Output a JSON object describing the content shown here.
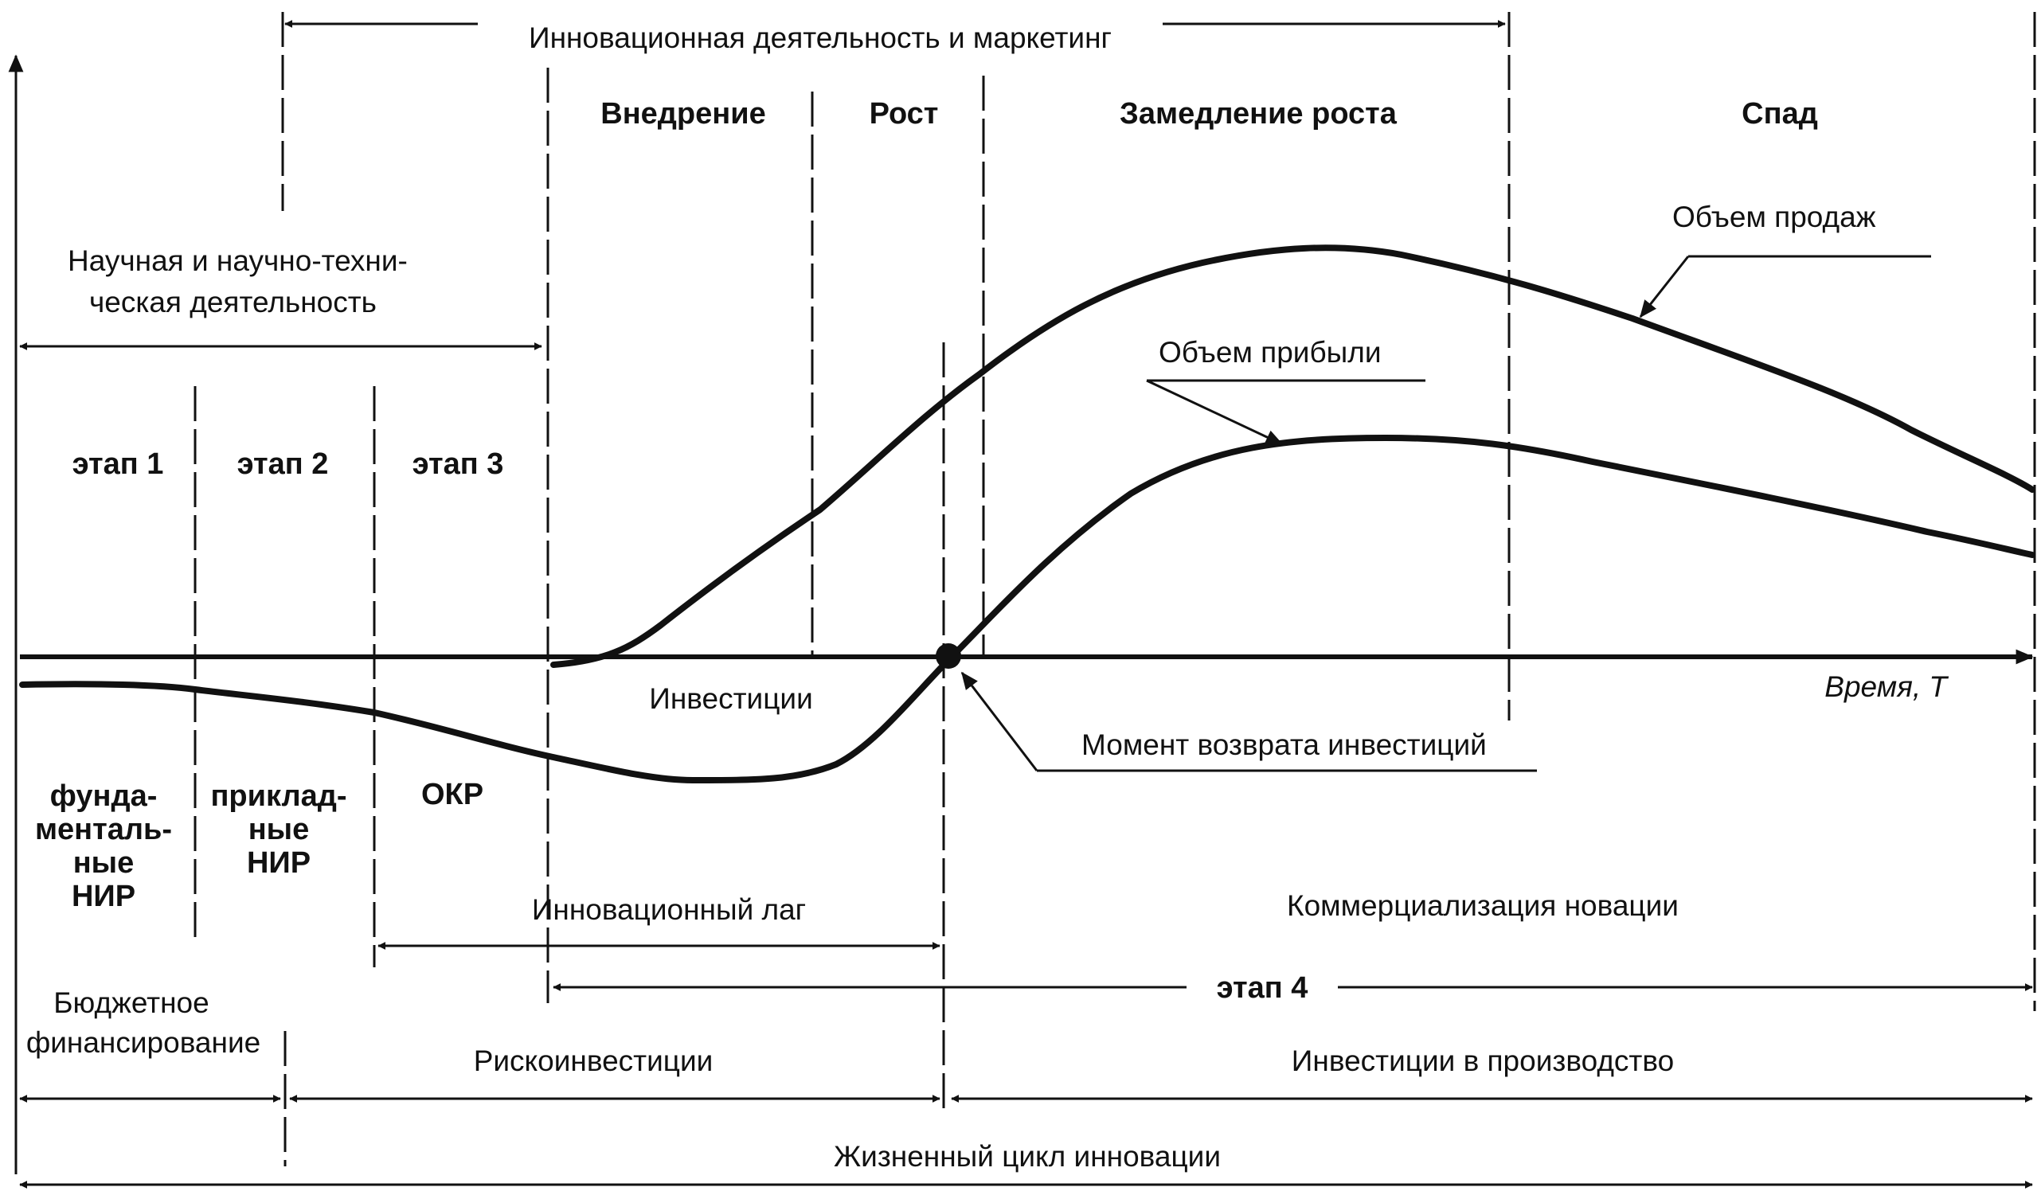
{
  "diagram": {
    "top_band": "Инновационная деятельность и маркетинг",
    "phases": {
      "intro": "Внедрение",
      "growth": "Рост",
      "slowdown": "Замедление роста",
      "decline": "Спад"
    },
    "research": {
      "line1": "Научная и научно-техни-",
      "line2": "ческая деятельность"
    },
    "stages": {
      "stage1": "этап 1",
      "stage2": "этап 2",
      "stage3": "этап 3",
      "stage4": "этап 4"
    },
    "curves": {
      "sales": "Объем продаж",
      "profit": "Объем прибыли"
    },
    "axis_time": "Время, T",
    "investments": "Инвестиции",
    "payback": "Момент возврата инвестиций",
    "rnd_types": {
      "fundamental": [
        "фунда-",
        "менталь-",
        "ные",
        "НИР"
      ],
      "applied": [
        "приклад-",
        "ные",
        "НИР"
      ],
      "okr": "ОКР"
    },
    "innovation_lag": "Инновационный лаг",
    "commercialization": "Коммерциализация новации",
    "budget": {
      "line1": "Бюджетное",
      "line2": "финансирование"
    },
    "risk_investments": "Рискоинвестиции",
    "production_investments": "Инвестиции в производство",
    "lifecycle": "Жизненный цикл инновации"
  }
}
